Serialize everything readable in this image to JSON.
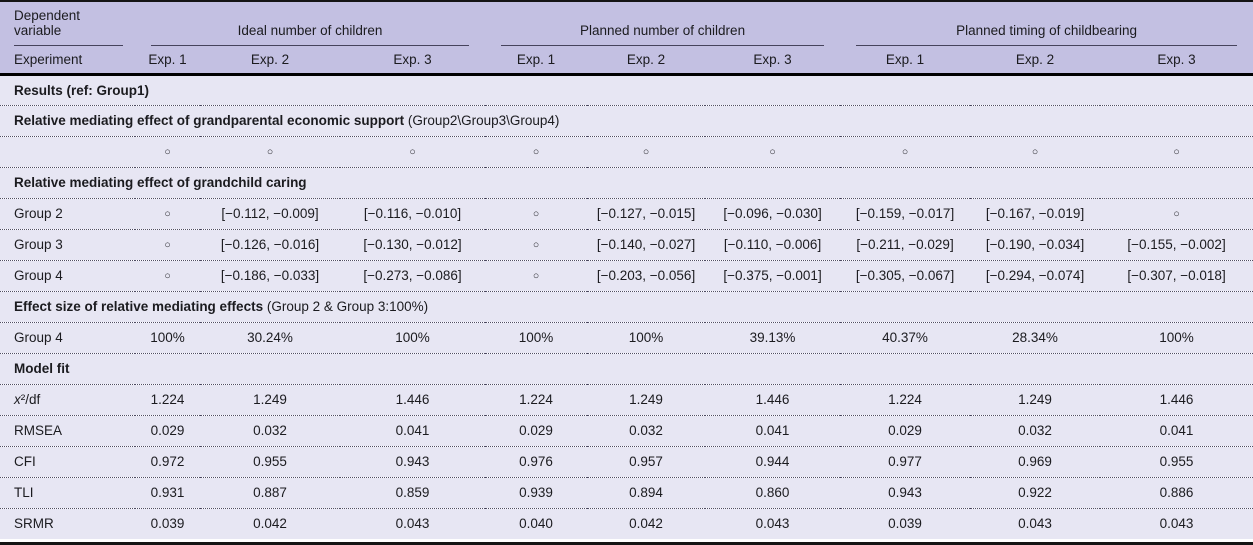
{
  "colors": {
    "header_bg": "#c3c0e2",
    "body_bg": "#e7e6f3",
    "rule_dark": "#141414",
    "dotted_rule": "#4f4c63"
  },
  "table": {
    "header": {
      "row1_label": "Dependent variable",
      "row2_label": "Experiment",
      "groups": [
        {
          "label": "Ideal number of children",
          "cols": [
            "Exp. 1",
            "Exp. 2",
            "Exp. 3"
          ]
        },
        {
          "label": "Planned number of children",
          "cols": [
            "Exp. 1",
            "Exp. 2",
            "Exp. 3"
          ]
        },
        {
          "label": "Planned timing of childbearing",
          "cols": [
            "Exp. 1",
            "Exp. 2",
            "Exp. 3"
          ]
        }
      ]
    },
    "empty_marker_glyph": "○",
    "rows": [
      {
        "type": "section",
        "name": "results-section",
        "bold": "Results (ref: Group1)",
        "note": ""
      },
      {
        "type": "section",
        "name": "econ-support-section",
        "bold": "Relative mediating effect of grandparental economic support",
        "note": "(Group2\\Group3\\Group4)"
      },
      {
        "type": "data",
        "name": "econ-support-values",
        "label": "",
        "values": [
          "○",
          "○",
          "○",
          "○",
          "○",
          "○",
          "○",
          "○",
          "○"
        ]
      },
      {
        "type": "section",
        "name": "grandchild-caring-section",
        "bold": "Relative mediating effect of grandchild caring",
        "note": ""
      },
      {
        "type": "data",
        "name": "group-2",
        "label": "Group 2",
        "values": [
          "○",
          "[−0.112, −0.009]",
          "[−0.116, −0.010]",
          "○",
          "[−0.127, −0.015]",
          "[−0.096, −0.030]",
          "[−0.159, −0.017]",
          "[−0.167, −0.019]",
          "○"
        ]
      },
      {
        "type": "data",
        "name": "group-3",
        "label": "Group 3",
        "values": [
          "○",
          "[−0.126, −0.016]",
          "[−0.130, −0.012]",
          "○",
          "[−0.140, −0.027]",
          "[−0.110, −0.006]",
          "[−0.211, −0.029]",
          "[−0.190, −0.034]",
          "[−0.155, −0.002]"
        ]
      },
      {
        "type": "data",
        "name": "group-4",
        "label": "Group 4",
        "values": [
          "○",
          "[−0.186, −0.033]",
          "[−0.273, −0.086]",
          "○",
          "[−0.203, −0.056]",
          "[−0.375, −0.001]",
          "[−0.305, −0.067]",
          "[−0.294, −0.074]",
          "[−0.307, −0.018]"
        ]
      },
      {
        "type": "section",
        "name": "effect-size-section",
        "bold": "Effect size of relative mediating effects",
        "note": "(Group 2 & Group 3:100%)"
      },
      {
        "type": "data",
        "name": "group-4-effect-size",
        "label": "Group 4",
        "values": [
          "100%",
          "30.24%",
          "100%",
          "100%",
          "100%",
          "39.13%",
          "40.37%",
          "28.34%",
          "100%"
        ]
      },
      {
        "type": "section",
        "name": "model-fit-section",
        "bold": "Model fit",
        "note": ""
      },
      {
        "type": "data",
        "name": "chi2-df",
        "label": "x²/df",
        "italic_first": true,
        "values": [
          "1.224",
          "1.249",
          "1.446",
          "1.224",
          "1.249",
          "1.446",
          "1.224",
          "1.249",
          "1.446"
        ]
      },
      {
        "type": "data",
        "name": "rmsea",
        "label": "RMSEA",
        "values": [
          "0.029",
          "0.032",
          "0.041",
          "0.029",
          "0.032",
          "0.041",
          "0.029",
          "0.032",
          "0.041"
        ]
      },
      {
        "type": "data",
        "name": "cfi",
        "label": "CFI",
        "values": [
          "0.972",
          "0.955",
          "0.943",
          "0.976",
          "0.957",
          "0.944",
          "0.977",
          "0.969",
          "0.955"
        ]
      },
      {
        "type": "data",
        "name": "tli",
        "label": "TLI",
        "values": [
          "0.931",
          "0.887",
          "0.859",
          "0.939",
          "0.894",
          "0.860",
          "0.943",
          "0.922",
          "0.886"
        ]
      },
      {
        "type": "data",
        "name": "srmr",
        "label": "SRMR",
        "values": [
          "0.039",
          "0.042",
          "0.043",
          "0.040",
          "0.042",
          "0.043",
          "0.039",
          "0.043",
          "0.043"
        ]
      }
    ]
  }
}
